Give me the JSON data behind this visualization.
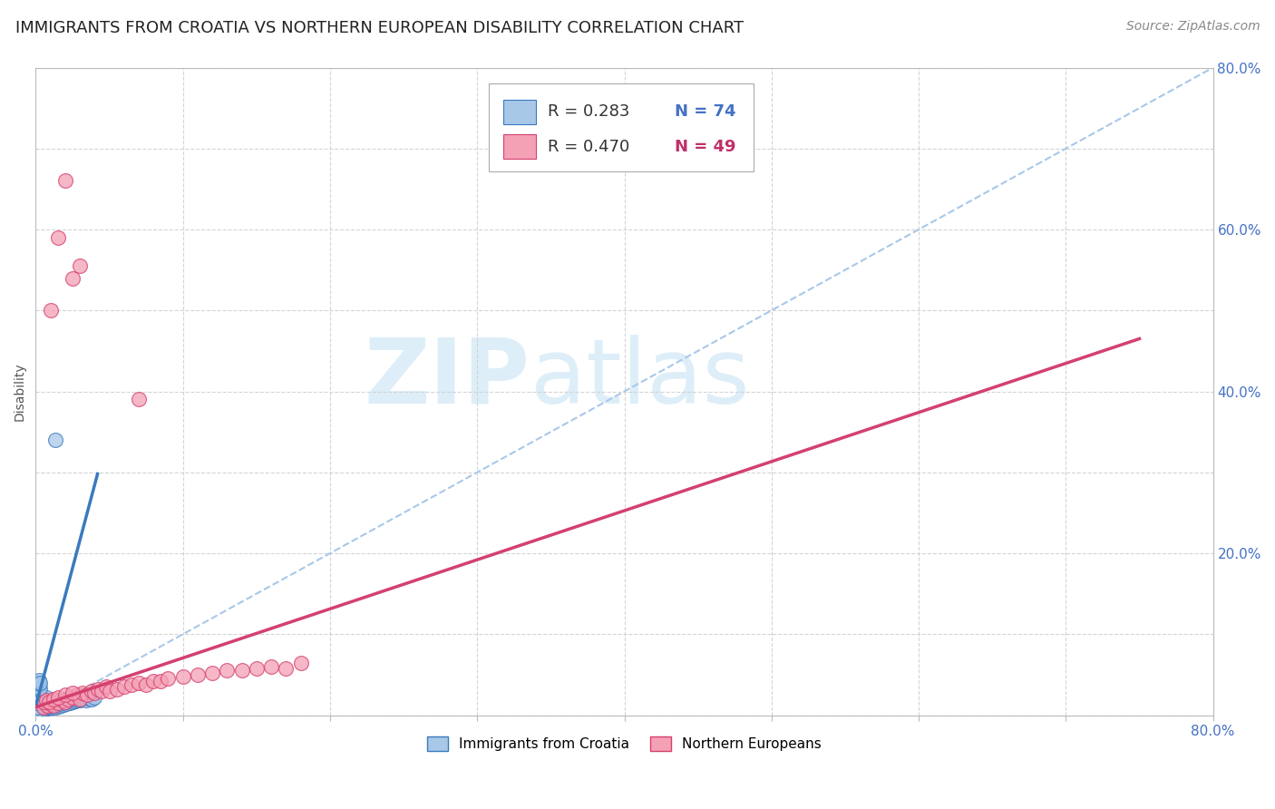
{
  "title": "IMMIGRANTS FROM CROATIA VS NORTHERN EUROPEAN DISABILITY CORRELATION CHART",
  "source": "Source: ZipAtlas.com",
  "ylabel": "Disability",
  "xlabel": "",
  "xlim": [
    0.0,
    0.8
  ],
  "ylim": [
    0.0,
    0.8
  ],
  "xticks": [
    0.0,
    0.1,
    0.2,
    0.3,
    0.4,
    0.5,
    0.6,
    0.7,
    0.8
  ],
  "yticks": [
    0.0,
    0.1,
    0.2,
    0.3,
    0.4,
    0.5,
    0.6,
    0.7,
    0.8
  ],
  "xticklabels": [
    "0.0%",
    "",
    "",
    "",
    "",
    "",
    "",
    "",
    "80.0%"
  ],
  "yticklabels": [
    "",
    "",
    "20.0%",
    "",
    "40.0%",
    "",
    "60.0%",
    "",
    "80.0%"
  ],
  "legend_R1": "0.283",
  "legend_N1": "74",
  "legend_R2": "0.470",
  "legend_N2": "49",
  "color_blue": "#a8c8e8",
  "color_pink": "#f4a0b5",
  "color_blue_line": "#3a7abf",
  "color_pink_line": "#d44070",
  "color_dashed": "#a8c8e8",
  "watermark_color": "#ddeef8",
  "blue_scatter": [
    [
      0.002,
      0.005
    ],
    [
      0.003,
      0.008
    ],
    [
      0.002,
      0.012
    ],
    [
      0.003,
      0.015
    ],
    [
      0.004,
      0.006
    ],
    [
      0.004,
      0.01
    ],
    [
      0.005,
      0.008
    ],
    [
      0.005,
      0.012
    ],
    [
      0.006,
      0.007
    ],
    [
      0.006,
      0.013
    ],
    [
      0.007,
      0.009
    ],
    [
      0.007,
      0.014
    ],
    [
      0.008,
      0.008
    ],
    [
      0.008,
      0.013
    ],
    [
      0.009,
      0.01
    ],
    [
      0.009,
      0.015
    ],
    [
      0.01,
      0.01
    ],
    [
      0.01,
      0.014
    ],
    [
      0.011,
      0.009
    ],
    [
      0.011,
      0.015
    ],
    [
      0.012,
      0.011
    ],
    [
      0.012,
      0.014
    ],
    [
      0.013,
      0.01
    ],
    [
      0.013,
      0.015
    ],
    [
      0.014,
      0.012
    ],
    [
      0.014,
      0.016
    ],
    [
      0.015,
      0.011
    ],
    [
      0.015,
      0.016
    ],
    [
      0.016,
      0.013
    ],
    [
      0.016,
      0.017
    ],
    [
      0.017,
      0.012
    ],
    [
      0.017,
      0.018
    ],
    [
      0.018,
      0.014
    ],
    [
      0.018,
      0.019
    ],
    [
      0.019,
      0.013
    ],
    [
      0.019,
      0.018
    ],
    [
      0.02,
      0.015
    ],
    [
      0.02,
      0.02
    ],
    [
      0.021,
      0.014
    ],
    [
      0.021,
      0.019
    ],
    [
      0.022,
      0.016
    ],
    [
      0.022,
      0.021
    ],
    [
      0.023,
      0.015
    ],
    [
      0.023,
      0.02
    ],
    [
      0.024,
      0.017
    ],
    [
      0.025,
      0.016
    ],
    [
      0.026,
      0.018
    ],
    [
      0.027,
      0.017
    ],
    [
      0.028,
      0.019
    ],
    [
      0.03,
      0.018
    ],
    [
      0.032,
      0.02
    ],
    [
      0.034,
      0.019
    ],
    [
      0.036,
      0.021
    ],
    [
      0.038,
      0.02
    ],
    [
      0.04,
      0.022
    ],
    [
      0.002,
      0.024
    ],
    [
      0.003,
      0.022
    ],
    [
      0.004,
      0.02
    ],
    [
      0.005,
      0.02
    ],
    [
      0.006,
      0.018
    ],
    [
      0.007,
      0.022
    ],
    [
      0.001,
      0.027
    ],
    [
      0.001,
      0.03
    ],
    [
      0.002,
      0.032
    ],
    [
      0.001,
      0.035
    ],
    [
      0.002,
      0.038
    ],
    [
      0.003,
      0.033
    ],
    [
      0.001,
      0.04
    ],
    [
      0.002,
      0.043
    ],
    [
      0.003,
      0.04
    ],
    [
      0.013,
      0.34
    ],
    [
      0.001,
      0.006
    ],
    [
      0.001,
      0.01
    ],
    [
      0.001,
      0.015
    ]
  ],
  "pink_scatter": [
    [
      0.005,
      0.01
    ],
    [
      0.008,
      0.012
    ],
    [
      0.01,
      0.014
    ],
    [
      0.012,
      0.012
    ],
    [
      0.015,
      0.015
    ],
    [
      0.018,
      0.018
    ],
    [
      0.02,
      0.016
    ],
    [
      0.022,
      0.02
    ],
    [
      0.025,
      0.022
    ],
    [
      0.028,
      0.025
    ],
    [
      0.03,
      0.02
    ],
    [
      0.032,
      0.028
    ],
    [
      0.035,
      0.025
    ],
    [
      0.038,
      0.03
    ],
    [
      0.04,
      0.028
    ],
    [
      0.042,
      0.032
    ],
    [
      0.045,
      0.03
    ],
    [
      0.048,
      0.035
    ],
    [
      0.05,
      0.03
    ],
    [
      0.055,
      0.032
    ],
    [
      0.06,
      0.035
    ],
    [
      0.065,
      0.038
    ],
    [
      0.07,
      0.04
    ],
    [
      0.075,
      0.038
    ],
    [
      0.08,
      0.042
    ],
    [
      0.085,
      0.042
    ],
    [
      0.09,
      0.045
    ],
    [
      0.1,
      0.048
    ],
    [
      0.11,
      0.05
    ],
    [
      0.12,
      0.052
    ],
    [
      0.13,
      0.055
    ],
    [
      0.14,
      0.056
    ],
    [
      0.15,
      0.058
    ],
    [
      0.16,
      0.06
    ],
    [
      0.17,
      0.058
    ],
    [
      0.18,
      0.065
    ],
    [
      0.07,
      0.39
    ],
    [
      0.01,
      0.5
    ],
    [
      0.015,
      0.59
    ],
    [
      0.025,
      0.54
    ],
    [
      0.03,
      0.555
    ],
    [
      0.02,
      0.66
    ],
    [
      0.005,
      0.016
    ],
    [
      0.007,
      0.018
    ],
    [
      0.009,
      0.016
    ],
    [
      0.012,
      0.02
    ],
    [
      0.015,
      0.022
    ],
    [
      0.02,
      0.025
    ],
    [
      0.025,
      0.028
    ]
  ],
  "blue_line_x": [
    0.0,
    0.042
  ],
  "blue_line_y": [
    0.011,
    0.298
  ],
  "pink_line_x": [
    0.0,
    0.75
  ],
  "pink_line_y": [
    0.01,
    0.465
  ],
  "dashed_line_x": [
    0.0,
    0.8
  ],
  "dashed_line_y": [
    0.0,
    0.8
  ],
  "background_color": "#ffffff",
  "grid_color": "#d0d0d0",
  "title_fontsize": 13,
  "axis_label_fontsize": 10,
  "tick_fontsize": 11,
  "legend_fontsize": 13
}
